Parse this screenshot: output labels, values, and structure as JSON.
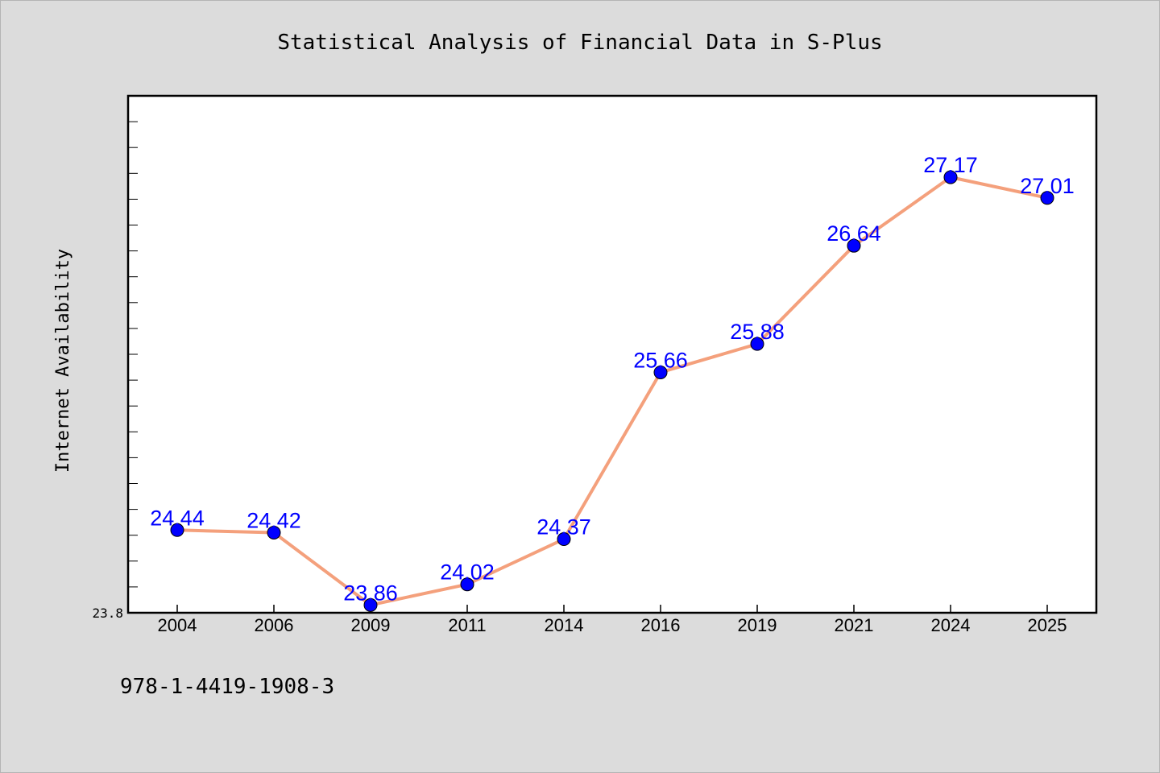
{
  "chart_data": {
    "type": "line",
    "title": "Statistical Analysis of Financial Data in S-Plus",
    "xlabel": "",
    "ylabel": "Internet Availability",
    "categories": [
      "2004",
      "2006",
      "2009",
      "2011",
      "2014",
      "2016",
      "2019",
      "2021",
      "2024",
      "2025"
    ],
    "series": [
      {
        "values": [
          24.44,
          24.42,
          23.86,
          24.02,
          24.37,
          25.66,
          25.88,
          26.64,
          27.17,
          27.01
        ],
        "labels": [
          "24.44",
          "24.42",
          "23.86",
          "24.02",
          "24.37",
          "25.66",
          "25.88",
          "26.64",
          "27.17",
          "27.01"
        ]
      }
    ],
    "ylim": [
      23.8,
      27.8
    ],
    "yticks": [
      {
        "value": 23.8,
        "label": "23.8"
      }
    ],
    "grid": false,
    "legend": "none",
    "colors": {
      "line": "#f4a07c",
      "marker": "#0000ff",
      "label": "#0000ff",
      "plot_background": "#ffffff",
      "page_background": "#dcdcdc"
    }
  },
  "footer": {
    "text": "978-1-4419-1908-3"
  }
}
